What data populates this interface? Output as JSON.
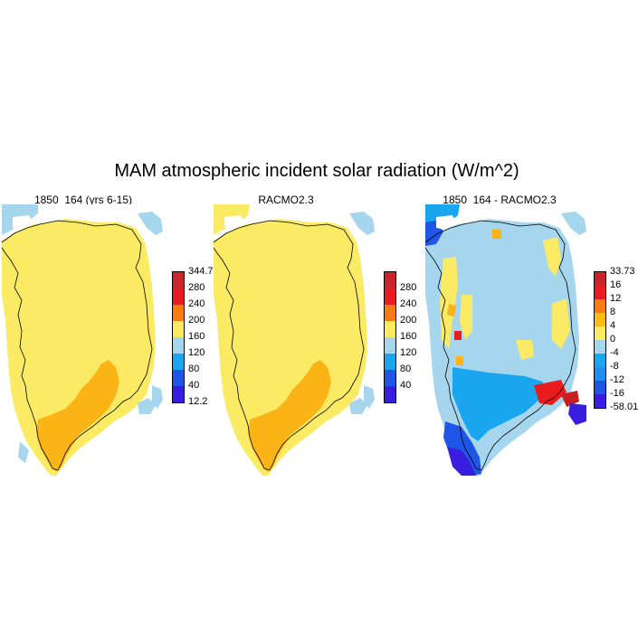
{
  "title": "MAM atmospheric incident solar radiation (W/m^2)",
  "colors": {
    "field": [
      "#3a1ee0",
      "#1f56e6",
      "#1aa6ee",
      "#a6d6ee",
      "#fbeb64",
      "#fbbb16",
      "#f87c10",
      "#e81c1c",
      "#c82020"
    ],
    "ocean": "#ffffff",
    "coast": "#000000"
  },
  "panels": [
    {
      "title": "1850_164 (yrs 6-15)",
      "colorbar": {
        "labels": [
          "344.7",
          "280",
          "240",
          "200",
          "160",
          "120",
          "80",
          "40",
          "12.2"
        ],
        "colors": [
          "#c8252d",
          "#e91c23",
          "#f87c10",
          "#fbeb64",
          "#a6d6ee",
          "#1aa6ee",
          "#1f56e6",
          "#3a1ee0"
        ]
      }
    },
    {
      "title": "RACMO2.3",
      "colorbar": {
        "labels": [
          "280",
          "240",
          "200",
          "160",
          "120",
          "80",
          "40"
        ],
        "colors": [
          "#c8252d",
          "#e91c23",
          "#f87c10",
          "#fbeb64",
          "#a6d6ee",
          "#1aa6ee",
          "#1f56e6",
          "#3a1ee0"
        ]
      }
    },
    {
      "title": "1850_164 - RACMO2.3",
      "colorbar": {
        "labels": [
          "33.73",
          "16",
          "12",
          "8",
          "4",
          "0",
          "-4",
          "-8",
          "-12",
          "-16",
          "-58.01"
        ],
        "colors": [
          "#c8252d",
          "#e91c23",
          "#f87c10",
          "#fbbb16",
          "#fbeb64",
          "#a6d6ee",
          "#1aa6ee",
          "#1f8ef0",
          "#1f56e6",
          "#3a1ee0"
        ]
      }
    }
  ]
}
